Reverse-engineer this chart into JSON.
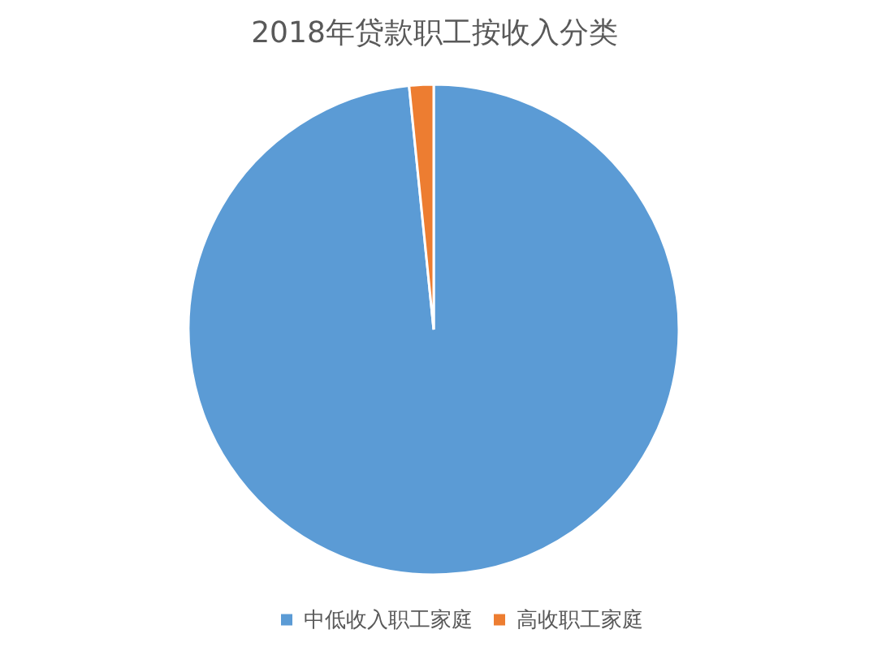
{
  "chart_data": {
    "type": "pie",
    "title": "2018年贷款职工按收入分类",
    "categories": [
      "中低收入职工家庭",
      "高收职工家庭"
    ],
    "values": [
      98.4,
      1.6
    ],
    "colors": [
      "#5b9bd5",
      "#ed7d31"
    ],
    "legend": "bottom"
  }
}
